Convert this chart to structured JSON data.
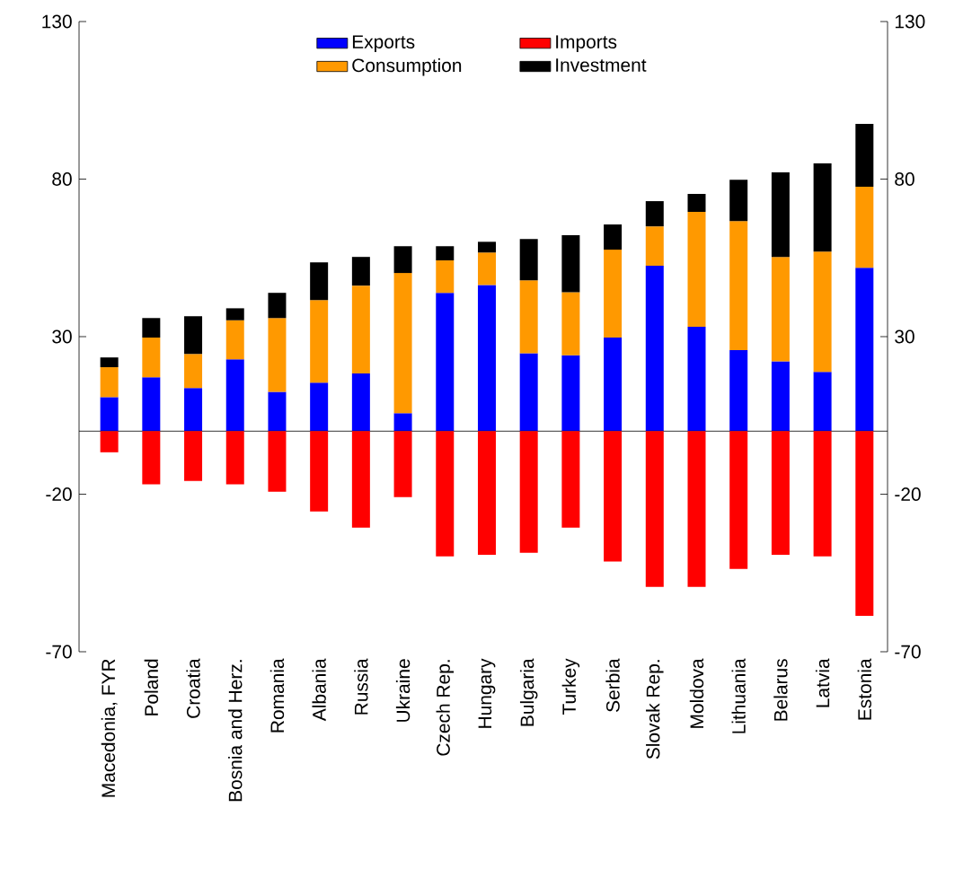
{
  "chart_data": {
    "type": "bar",
    "stacked": true,
    "legend": "top",
    "categories": [
      "Macedonia, FYR",
      "Poland",
      "Croatia",
      "Bosnia and Herz.",
      "Romania",
      "Albania",
      "Russia",
      "Ukraine",
      "Czech Rep.",
      "Hungary",
      "Bulgaria",
      "Turkey",
      "Serbia",
      "Slovak Rep.",
      "Moldova",
      "Lithuania",
      "Belarus",
      "Latvia",
      "Estonia"
    ],
    "series": [
      {
        "name": "Exports",
        "color": "#0000ff",
        "values": [
          10.8,
          17.1,
          13.7,
          22.8,
          12.5,
          15.4,
          18.3,
          5.7,
          43.9,
          46.4,
          24.7,
          24.1,
          29.7,
          52.5,
          33.1,
          25.7,
          22.2,
          18.8,
          51.9
        ]
      },
      {
        "name": "Imports",
        "color": "#ff0000",
        "axis": "y2",
        "values": [
          -6.7,
          -16.9,
          -15.8,
          -16.9,
          -19.2,
          -25.5,
          -30.6,
          -20.9,
          -39.7,
          -39.2,
          -38.6,
          -30.6,
          -41.4,
          -49.4,
          -49.4,
          -43.7,
          -39.2,
          -39.7,
          -58.6
        ]
      },
      {
        "name": "Consumption",
        "color": "#ff9900",
        "values": [
          9.5,
          12.6,
          10.8,
          12.4,
          23.4,
          26.2,
          27.9,
          44.5,
          10.3,
          10.3,
          23.2,
          20.0,
          27.9,
          12.5,
          36.5,
          41.0,
          33.1,
          38.2,
          25.7
        ]
      },
      {
        "name": "Investment",
        "color": "#000000",
        "values": [
          3.1,
          6.2,
          12.0,
          3.8,
          8.0,
          12.0,
          9.1,
          8.5,
          4.5,
          3.4,
          13.1,
          18.1,
          8.0,
          8.0,
          5.7,
          13.1,
          26.8,
          28.0,
          19.9
        ]
      }
    ],
    "ylim": [
      -70,
      130
    ],
    "yticks": [
      -70,
      -20,
      30,
      80,
      130
    ],
    "y2lim": [
      -70,
      130
    ],
    "y2ticks": [
      -70,
      -20,
      30,
      80,
      130
    ]
  }
}
